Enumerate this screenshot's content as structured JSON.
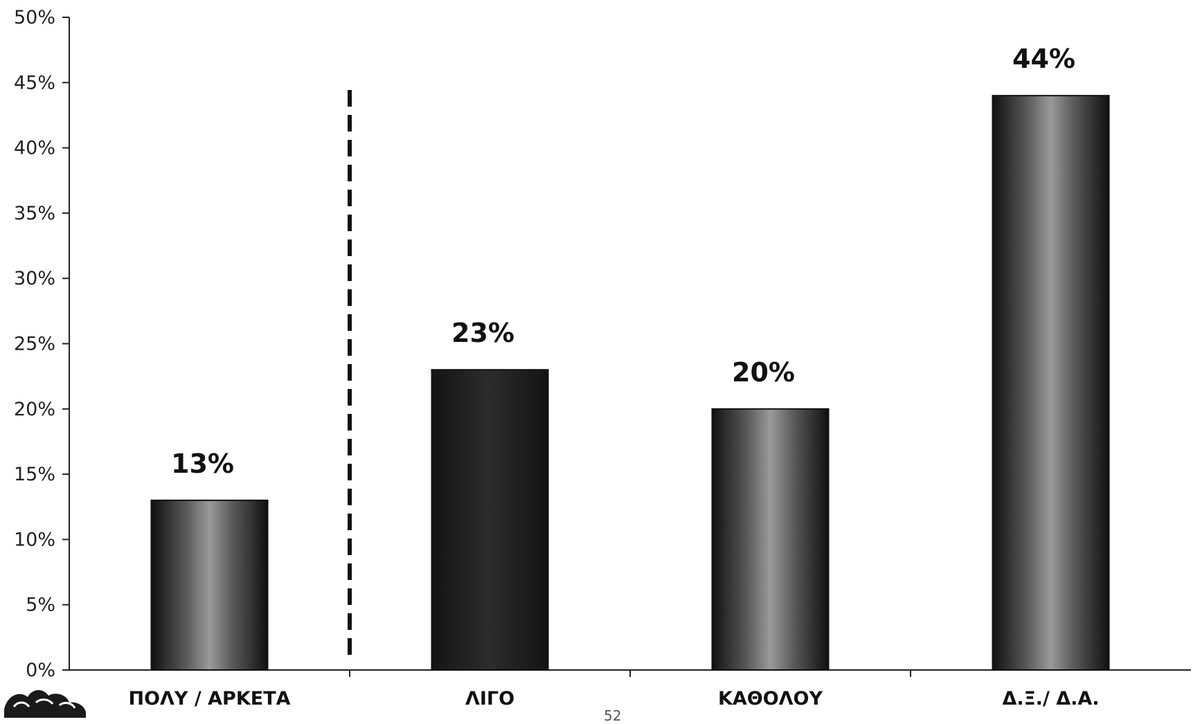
{
  "page_number": "52",
  "chart_data": {
    "type": "bar",
    "categories": [
      "ΠΟΛΥ / ΑΡΚΕΤΑ",
      "ΛΙΓΟ",
      "ΚΑΘΟΛΟΥ",
      "Δ.Ξ./ Δ.Α."
    ],
    "values": [
      13,
      23,
      20,
      44
    ],
    "data_labels": [
      "13%",
      "23%",
      "20%",
      "44%"
    ],
    "ylim": [
      0,
      50
    ],
    "yticks": [
      "0%",
      "5%",
      "10%",
      "15%",
      "20%",
      "25%",
      "30%",
      "35%",
      "40%",
      "45%",
      "50%"
    ],
    "title": "",
    "xlabel": "",
    "ylabel": "",
    "grid": false,
    "separator_after_category": 0,
    "bar_color": "#1a1a1a"
  }
}
